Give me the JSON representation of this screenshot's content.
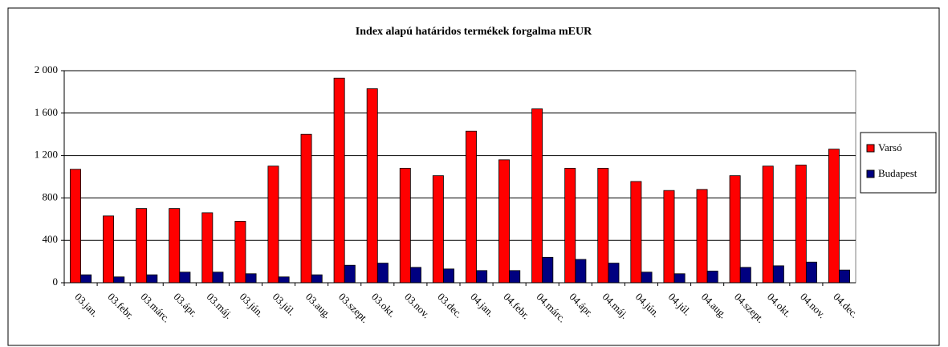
{
  "chart_data": {
    "type": "bar",
    "title": "Index alapú határidos termékek forgalma mEUR",
    "categories": [
      "03.jan.",
      "03.febr.",
      "03.márc.",
      "03.ápr.",
      "03.máj.",
      "03.jún.",
      "03.júl.",
      "03.aug.",
      "03.szept.",
      "03.okt.",
      "03.nov.",
      "03.dec.",
      "04.jan.",
      "04.febr.",
      "04.márc.",
      "04.ápr.",
      "04.máj.",
      "04.jún.",
      "04.júl.",
      "04.aug.",
      "04.szept.",
      "04.okt.",
      "04.nov.",
      "04.dec."
    ],
    "series": [
      {
        "name": "Varsó",
        "color": "#ff0000",
        "values": [
          1070,
          630,
          700,
          700,
          660,
          580,
          1100,
          1400,
          1930,
          1830,
          1080,
          1010,
          1430,
          1160,
          1640,
          1080,
          1080,
          955,
          870,
          880,
          1010,
          1100,
          1110,
          1260
        ]
      },
      {
        "name": "Budapest",
        "color": "#000080",
        "values": [
          75,
          55,
          75,
          100,
          100,
          85,
          55,
          75,
          165,
          185,
          145,
          130,
          115,
          115,
          240,
          220,
          185,
          100,
          85,
          110,
          145,
          160,
          195,
          120
        ]
      }
    ],
    "ylim": [
      0,
      2000
    ],
    "yticks": [
      0,
      400,
      800,
      {
        "value": 1200,
        "label": "1 200"
      },
      {
        "value": 1600,
        "label": "1 600"
      },
      {
        "value": 2000,
        "label": "2 000"
      }
    ],
    "grid": true,
    "legend": "right"
  }
}
